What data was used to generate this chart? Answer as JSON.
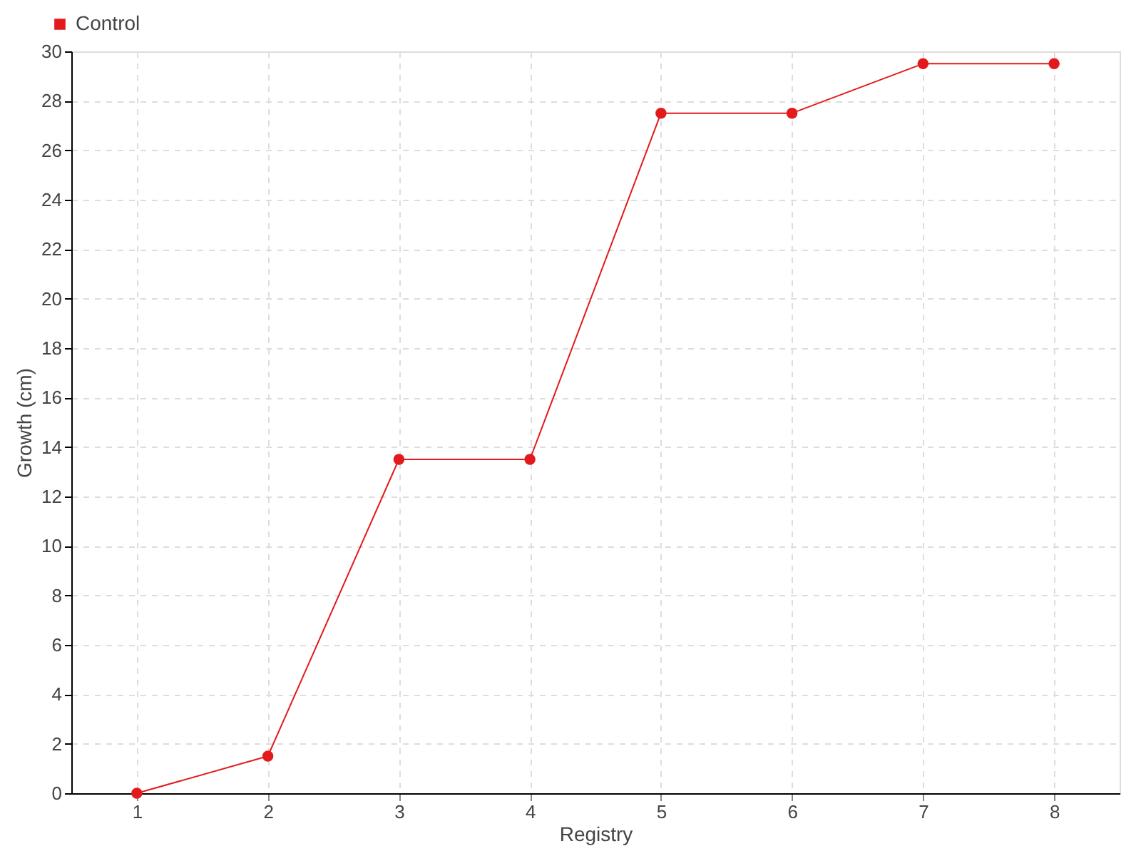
{
  "chart_data": {
    "type": "line",
    "xlabel": "Registry",
    "ylabel": "Growth (cm)",
    "categories": [
      "1",
      "2",
      "3",
      "4",
      "5",
      "6",
      "7",
      "8"
    ],
    "series": [
      {
        "name": "Control",
        "color": "#e31a1c",
        "values": [
          0,
          1.5,
          13.5,
          13.5,
          27.5,
          27.5,
          29.5,
          29.5
        ]
      }
    ],
    "ylim": [
      0,
      30
    ],
    "yticks": [
      0,
      2,
      4,
      6,
      8,
      10,
      12,
      14,
      16,
      18,
      20,
      22,
      24,
      26,
      28,
      30
    ],
    "grid": true,
    "legend": "top left",
    "marker": "circle",
    "line_style": "solid"
  }
}
